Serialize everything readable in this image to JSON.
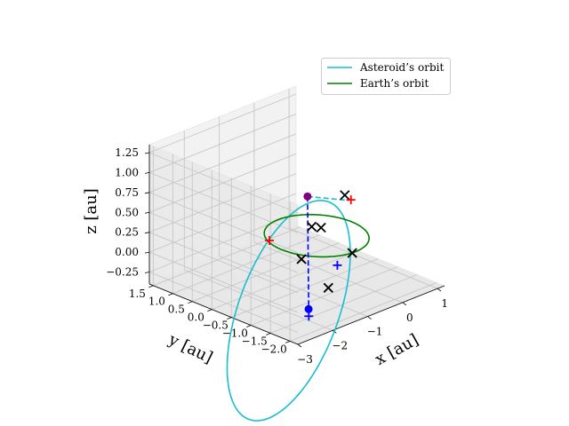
{
  "chart_data": {
    "type": "line",
    "projection": "3d",
    "title": "",
    "xlabel": "x [au]",
    "ylabel": "y [au]",
    "zlabel": "z [au]",
    "xlim": [
      -3,
      1.2
    ],
    "ylim": [
      -2.2,
      1.6
    ],
    "zlim": [
      -0.4,
      1.35
    ],
    "xticks": [
      "1",
      "0",
      "−1",
      "−2",
      "−3"
    ],
    "xtick_values": [
      1,
      0,
      -1,
      -2,
      -3
    ],
    "yticks": [
      "1.5",
      "1.0",
      "0.5",
      "0.0",
      "−0.5",
      "−1.0",
      "−1.5",
      "−2.0"
    ],
    "ytick_values": [
      1.5,
      1.0,
      0.5,
      0.0,
      -0.5,
      -1.0,
      -1.5,
      -2.0
    ],
    "zticks": [
      "1.25",
      "1.00",
      "0.75",
      "0.50",
      "0.25",
      "0.00",
      "−0.25"
    ],
    "ztick_values": [
      1.25,
      1.0,
      0.75,
      0.5,
      0.25,
      0.0,
      -0.25
    ],
    "grid": true,
    "legend_position": "top-right",
    "series": [
      {
        "name": "Asteroid’s orbit",
        "color": "#17becf",
        "style": "solid",
        "orbit": {
          "a": 1.64,
          "e": 0.69,
          "peri_dir": [
            0.707,
            0.0,
            0.707
          ],
          "minor_dir": [
            0.0,
            1.0,
            0.0
          ]
        }
      },
      {
        "name": "Earth’s orbit",
        "color": "#008000",
        "style": "solid",
        "orbit": {
          "a": 1.0,
          "e": 0.0,
          "peri_dir": [
            1.0,
            0.0,
            0.0
          ],
          "minor_dir": [
            0.0,
            1.0,
            0.0
          ]
        }
      }
    ],
    "line_segments": [
      {
        "color": "#17becf",
        "style": "dashed",
        "from": [
          -0.15,
          0.1,
          0.5
        ],
        "to": [
          -1.25,
          -1.95,
          1.05
        ]
      },
      {
        "color": "#0000ff",
        "style": "dashed",
        "from": [
          -0.15,
          0.1,
          0.5
        ],
        "to": [
          -2.35,
          -1.9,
          -0.22
        ]
      }
    ],
    "markers": [
      {
        "shape": "cross",
        "color": "#000000",
        "x": -1.32,
        "y": -1.9,
        "z": 1.12
      },
      {
        "shape": "cross",
        "color": "#000000",
        "x": 0.25,
        "y": 0.35,
        "z": 0.0
      },
      {
        "shape": "cross",
        "color": "#000000",
        "x": 0.35,
        "y": 0.2,
        "z": 0.0
      },
      {
        "shape": "cross",
        "color": "#000000",
        "x": -1.05,
        "y": -0.55,
        "z": 0.0
      },
      {
        "shape": "cross",
        "color": "#000000",
        "x": -0.1,
        "y": -1.0,
        "z": 0.0
      },
      {
        "shape": "cross",
        "color": "#000000",
        "x": -1.4,
        "y": -1.55,
        "z": -0.1
      },
      {
        "shape": "plus",
        "color": "#ff0000",
        "x": -1.2,
        "y": -1.95,
        "z": 1.05
      },
      {
        "shape": "plus",
        "color": "#ff0000",
        "x": -0.85,
        "y": 0.45,
        "z": 0.0
      },
      {
        "shape": "plus",
        "color": "#0000ff",
        "x": -0.75,
        "y": -1.2,
        "z": 0.0
      },
      {
        "shape": "plus",
        "color": "#0000ff",
        "x": -2.35,
        "y": -1.9,
        "z": -0.22
      },
      {
        "shape": "dot",
        "color": "#0000ff",
        "x": -2.3,
        "y": -1.85,
        "z": -0.15
      },
      {
        "shape": "dot",
        "color": "#800080",
        "x": -0.15,
        "y": 0.1,
        "z": 0.5
      }
    ]
  }
}
